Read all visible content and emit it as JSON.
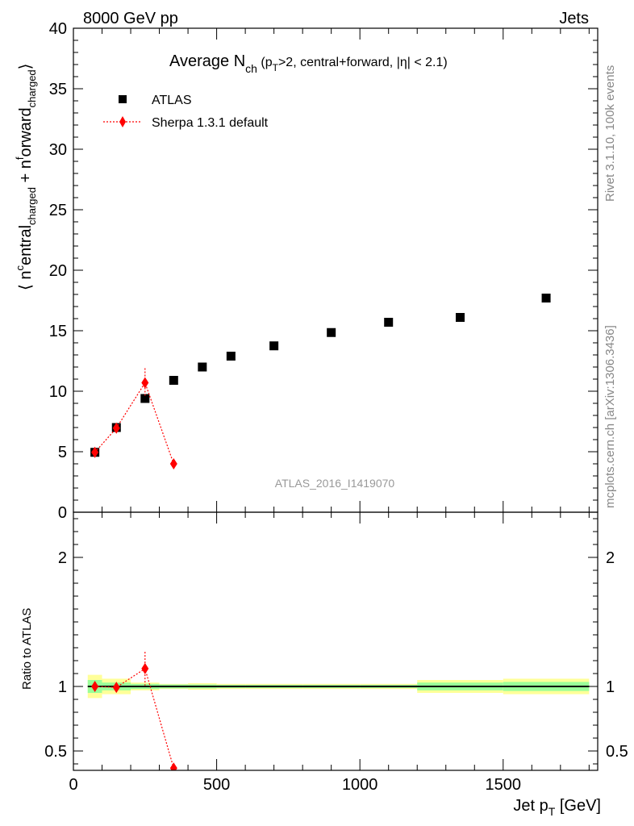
{
  "header": {
    "energy_label": "8000 GeV pp",
    "process_label": "Jets",
    "side_text_top": "Rivet 3.1.10,  100k events",
    "side_text_bottom": "mcplots.cern.ch [arXiv:1306.3436]",
    "watermark": "ATLAS_2016_I1419070"
  },
  "chart_data": [
    {
      "type": "scatter",
      "title": "Average N",
      "title_sub": "ch",
      "title_suffix_a": " (p",
      "title_suffix_sub": "T",
      "title_suffix_b": ">2, central+forward, |η| < 2.1)",
      "ylabel": "⟨ n^central_charged + n^forward_charged ⟩",
      "xlim": [
        0,
        1830
      ],
      "ylim": [
        0,
        40
      ],
      "yticks": [
        0,
        5,
        10,
        15,
        20,
        25,
        30,
        35,
        40
      ],
      "legend": "top-left",
      "series": [
        {
          "name": "ATLAS",
          "marker": "square",
          "color": "#000000",
          "x": [
            75,
            150,
            250,
            350,
            450,
            550,
            700,
            900,
            1100,
            1350,
            1650
          ],
          "y": [
            4.95,
            7.0,
            9.4,
            10.9,
            12.0,
            12.9,
            13.75,
            14.85,
            15.7,
            16.1,
            17.7
          ]
        },
        {
          "name": "Sherpa 1.3.1 default",
          "marker": "diamond",
          "color": "#ff0000",
          "line": "dotted",
          "x": [
            75,
            150,
            250,
            350
          ],
          "y": [
            4.95,
            6.95,
            10.7,
            4.0
          ],
          "yerr": [
            0.1,
            0.15,
            1.2,
            0.15
          ]
        }
      ]
    },
    {
      "type": "scatter",
      "ylabel": "Ratio to ATLAS",
      "xlabel": "Jet p_T [GeV]",
      "xlim": [
        0,
        1830
      ],
      "ylim": [
        0.35,
        2.35
      ],
      "yticks": [
        0.5,
        1,
        2
      ],
      "xticks": [
        0,
        500,
        1000,
        1500
      ],
      "reference_line": 1,
      "bands": {
        "x_edges": [
          50,
          100,
          200,
          300,
          400,
          500,
          600,
          800,
          1000,
          1200,
          1500,
          1800
        ],
        "green_half_width": [
          0.05,
          0.03,
          0.02,
          0.015,
          0.015,
          0.012,
          0.012,
          0.012,
          0.012,
          0.03,
          0.035
        ],
        "yellow_half_width": [
          0.09,
          0.06,
          0.03,
          0.02,
          0.025,
          0.02,
          0.02,
          0.02,
          0.02,
          0.05,
          0.06
        ]
      },
      "series": [
        {
          "name": "Sherpa 1.3.1 default",
          "marker": "diamond",
          "color": "#ff0000",
          "line": "dotted",
          "x": [
            75,
            150,
            250,
            350
          ],
          "y": [
            1.0,
            0.993,
            1.138,
            0.367
          ],
          "yerr": [
            0.02,
            0.02,
            0.13,
            0.02
          ]
        }
      ]
    }
  ]
}
